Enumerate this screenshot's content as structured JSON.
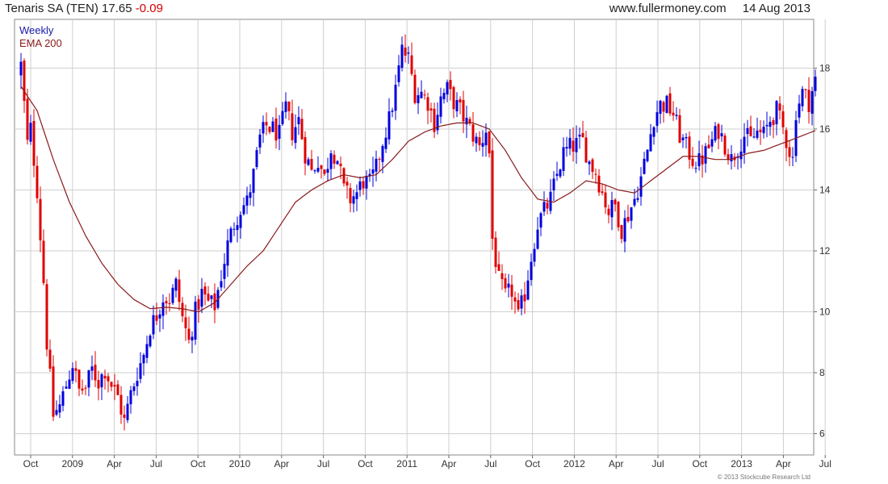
{
  "header": {
    "title": "Tenaris SA (TEN)",
    "price": "17.65",
    "change": "-0.09",
    "site": "www.fullermoney.com",
    "date": "14 Aug 2013"
  },
  "footer": {
    "copyright": "© 2013 Stockcube Research Ltd"
  },
  "colors": {
    "up": "#0000dd",
    "down": "#e00000",
    "ema": "#8b1a1a",
    "grid": "#cfcfcf"
  },
  "chart_data": {
    "type": "candlestick",
    "frequency_label": "Weekly",
    "overlay_label": "EMA 200",
    "ylim": [
      5.3,
      19.6
    ],
    "y_ticks": [
      6,
      8,
      10,
      12,
      14,
      16,
      18
    ],
    "x_ticks": [
      "Oct",
      "2009",
      "Apr",
      "Jul",
      "Oct",
      "2010",
      "Apr",
      "Jul",
      "Oct",
      "2011",
      "Apr",
      "Jul",
      "Oct",
      "2012",
      "Apr",
      "Jul",
      "Oct",
      "2013",
      "Apr",
      "Jul"
    ],
    "close_anchors": [
      [
        0,
        18.1
      ],
      [
        2,
        15.5
      ],
      [
        3,
        16.0
      ],
      [
        5,
        14.0
      ],
      [
        7,
        11.0
      ],
      [
        8,
        9.0
      ],
      [
        9,
        7.8
      ],
      [
        10,
        6.6
      ],
      [
        12,
        6.9
      ],
      [
        14,
        7.6
      ],
      [
        16,
        8.3
      ],
      [
        18,
        7.4
      ],
      [
        20,
        7.5
      ],
      [
        22,
        8.1
      ],
      [
        24,
        7.7
      ],
      [
        26,
        8.1
      ],
      [
        28,
        7.6
      ],
      [
        30,
        7.2
      ],
      [
        32,
        6.4
      ],
      [
        34,
        7.3
      ],
      [
        36,
        8.0
      ],
      [
        38,
        8.6
      ],
      [
        40,
        9.5
      ],
      [
        42,
        9.9
      ],
      [
        44,
        10.5
      ],
      [
        46,
        10.4
      ],
      [
        48,
        10.9
      ],
      [
        50,
        9.8
      ],
      [
        52,
        9.0
      ],
      [
        54,
        10.0
      ],
      [
        56,
        10.6
      ],
      [
        58,
        10.3
      ],
      [
        60,
        10.2
      ],
      [
        62,
        11.2
      ],
      [
        64,
        12.2
      ],
      [
        66,
        12.9
      ],
      [
        68,
        13.4
      ],
      [
        70,
        13.6
      ],
      [
        72,
        14.5
      ],
      [
        74,
        15.7
      ],
      [
        76,
        16.1
      ],
      [
        78,
        16.0
      ],
      [
        80,
        15.8
      ],
      [
        82,
        16.7
      ],
      [
        84,
        15.9
      ],
      [
        86,
        16.3
      ],
      [
        88,
        15.2
      ],
      [
        90,
        14.6
      ],
      [
        92,
        15.0
      ],
      [
        94,
        14.4
      ],
      [
        96,
        15.4
      ],
      [
        98,
        15.0
      ],
      [
        100,
        14.0
      ],
      [
        102,
        13.7
      ],
      [
        104,
        13.9
      ],
      [
        106,
        14.3
      ],
      [
        108,
        14.2
      ],
      [
        110,
        14.7
      ],
      [
        112,
        15.6
      ],
      [
        114,
        16.3
      ],
      [
        116,
        17.3
      ],
      [
        118,
        18.6
      ],
      [
        120,
        18.3
      ],
      [
        122,
        17.2
      ],
      [
        124,
        17.2
      ],
      [
        126,
        16.9
      ],
      [
        128,
        16.2
      ],
      [
        130,
        17.0
      ],
      [
        132,
        17.3
      ],
      [
        134,
        16.9
      ],
      [
        136,
        16.6
      ],
      [
        138,
        16.2
      ],
      [
        140,
        15.8
      ],
      [
        142,
        15.4
      ],
      [
        144,
        16.0
      ],
      [
        145,
        15.2
      ],
      [
        146,
        12.4
      ],
      [
        148,
        11.0
      ],
      [
        150,
        10.5
      ],
      [
        152,
        10.7
      ],
      [
        154,
        9.8
      ],
      [
        156,
        10.6
      ],
      [
        158,
        11.8
      ],
      [
        160,
        12.9
      ],
      [
        162,
        13.3
      ],
      [
        164,
        13.7
      ],
      [
        166,
        14.5
      ],
      [
        168,
        15.2
      ],
      [
        170,
        15.4
      ],
      [
        172,
        15.5
      ],
      [
        174,
        15.6
      ],
      [
        176,
        14.9
      ],
      [
        178,
        14.6
      ],
      [
        180,
        13.9
      ],
      [
        182,
        13.3
      ],
      [
        184,
        13.5
      ],
      [
        186,
        12.7
      ],
      [
        188,
        13.2
      ],
      [
        190,
        13.7
      ],
      [
        192,
        14.4
      ],
      [
        194,
        15.3
      ],
      [
        196,
        16.4
      ],
      [
        198,
        16.8
      ],
      [
        200,
        16.8
      ],
      [
        202,
        16.5
      ],
      [
        204,
        15.8
      ],
      [
        206,
        15.4
      ],
      [
        208,
        15.0
      ],
      [
        210,
        14.9
      ],
      [
        212,
        15.2
      ],
      [
        214,
        15.6
      ],
      [
        216,
        16.0
      ],
      [
        218,
        15.5
      ],
      [
        220,
        15.0
      ],
      [
        222,
        15.4
      ],
      [
        224,
        15.8
      ],
      [
        226,
        15.6
      ],
      [
        228,
        15.9
      ],
      [
        230,
        15.8
      ],
      [
        232,
        16.3
      ],
      [
        234,
        16.6
      ],
      [
        236,
        16.0
      ],
      [
        238,
        15.3
      ],
      [
        239,
        15.0
      ],
      [
        240,
        16.6
      ],
      [
        242,
        17.2
      ],
      [
        244,
        16.9
      ],
      [
        246,
        17.6
      ]
    ],
    "ema_anchors": [
      [
        0,
        17.4
      ],
      [
        5,
        16.6
      ],
      [
        10,
        15.0
      ],
      [
        15,
        13.6
      ],
      [
        20,
        12.5
      ],
      [
        25,
        11.6
      ],
      [
        30,
        10.9
      ],
      [
        35,
        10.4
      ],
      [
        40,
        10.1
      ],
      [
        45,
        10.15
      ],
      [
        50,
        10.1
      ],
      [
        55,
        10.0
      ],
      [
        60,
        10.3
      ],
      [
        65,
        10.9
      ],
      [
        70,
        11.5
      ],
      [
        75,
        12.0
      ],
      [
        80,
        12.8
      ],
      [
        85,
        13.6
      ],
      [
        90,
        14.0
      ],
      [
        95,
        14.3
      ],
      [
        100,
        14.5
      ],
      [
        105,
        14.4
      ],
      [
        110,
        14.5
      ],
      [
        115,
        15.0
      ],
      [
        120,
        15.6
      ],
      [
        125,
        15.9
      ],
      [
        130,
        16.1
      ],
      [
        135,
        16.2
      ],
      [
        140,
        16.2
      ],
      [
        145,
        16.0
      ],
      [
        150,
        15.3
      ],
      [
        155,
        14.4
      ],
      [
        160,
        13.7
      ],
      [
        165,
        13.6
      ],
      [
        170,
        13.9
      ],
      [
        175,
        14.3
      ],
      [
        180,
        14.2
      ],
      [
        185,
        14.0
      ],
      [
        190,
        13.9
      ],
      [
        195,
        14.3
      ],
      [
        200,
        14.7
      ],
      [
        205,
        15.1
      ],
      [
        210,
        15.1
      ],
      [
        215,
        15.0
      ],
      [
        220,
        15.0
      ],
      [
        225,
        15.2
      ],
      [
        230,
        15.3
      ],
      [
        235,
        15.5
      ],
      [
        240,
        15.7
      ],
      [
        246,
        15.95
      ]
    ]
  }
}
